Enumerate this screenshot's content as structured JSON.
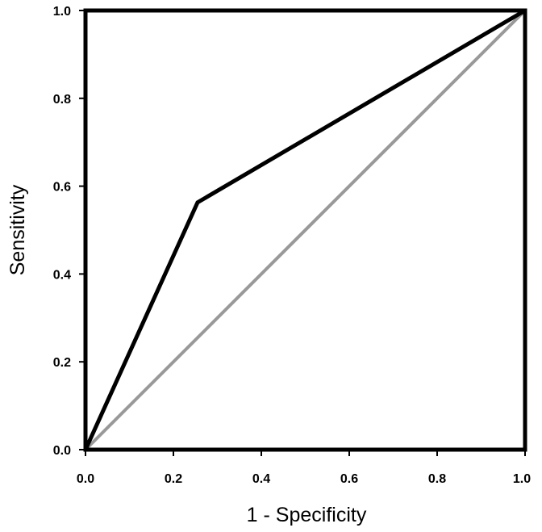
{
  "chart_data": {
    "type": "line",
    "title": "",
    "xlabel": "1 - Specificity",
    "ylabel": "Sensitivity",
    "xlim": [
      0,
      1
    ],
    "ylim": [
      0,
      1
    ],
    "grid": false,
    "legend": "none",
    "x_ticks": [
      "0.0",
      "0.2",
      "0.4",
      "0.6",
      "0.8",
      "1.0"
    ],
    "y_ticks": [
      "0.0",
      "0.2",
      "0.4",
      "0.6",
      "0.8",
      "1.0"
    ],
    "x_tick_values": [
      0,
      0.2,
      0.4,
      0.6,
      0.8,
      1.0
    ],
    "y_tick_values": [
      0,
      0.2,
      0.4,
      0.6,
      0.8,
      1.0
    ],
    "series": [
      {
        "color": "#000000",
        "x": [
          0,
          0.255,
          1.0
        ],
        "y": [
          0,
          0.563,
          1.0
        ]
      },
      {
        "color": "#999999",
        "x": [
          0,
          1.0
        ],
        "y": [
          0,
          1.0
        ]
      }
    ]
  }
}
